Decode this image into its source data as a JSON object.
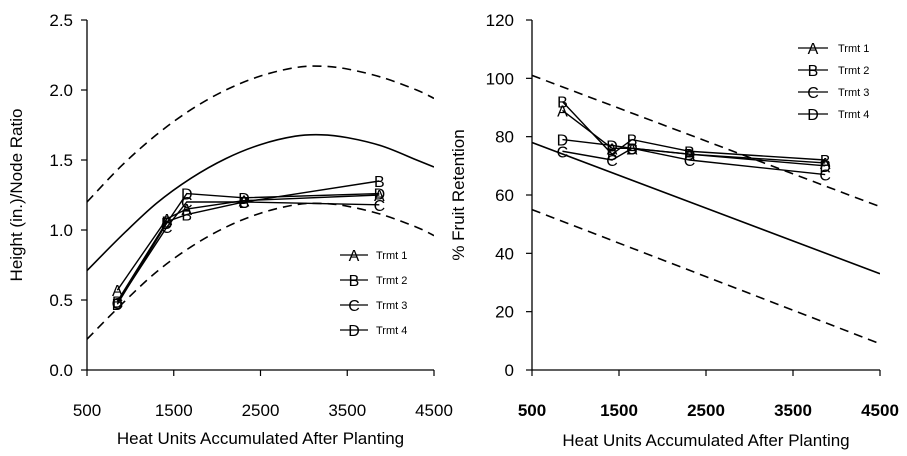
{
  "chart_data": [
    {
      "type": "line",
      "title": "",
      "xlabel": "Heat Units Accumulated After Planting",
      "ylabel": "Height (in.)/Node Ratio",
      "xlim": [
        500,
        4500
      ],
      "ylim": [
        0,
        2.5
      ],
      "xticks": [
        "500",
        "1500",
        "2500",
        "3500",
        "4500"
      ],
      "yticks": [
        "0.0",
        "0.5",
        "1.0",
        "1.5",
        "2.0",
        "2.5"
      ],
      "grid": false,
      "legend_position": "bottom-right",
      "series": [
        {
          "name": "Trmt 1",
          "marker": "A",
          "x": [
            850,
            1420,
            1650,
            2310,
            3870
          ],
          "y": [
            0.57,
            1.08,
            1.15,
            1.21,
            1.25
          ]
        },
        {
          "name": "Trmt 2",
          "marker": "B",
          "x": [
            850,
            1420,
            1650,
            2310,
            3870
          ],
          "y": [
            0.49,
            1.06,
            1.11,
            1.2,
            1.35
          ]
        },
        {
          "name": "Trmt 3",
          "marker": "C",
          "x": [
            850,
            1420,
            1650,
            2310,
            3870
          ],
          "y": [
            0.48,
            1.02,
            1.2,
            1.2,
            1.18
          ]
        },
        {
          "name": "Trmt 4",
          "marker": "D",
          "x": [
            850,
            1420,
            1650,
            2310,
            3870
          ],
          "y": [
            0.47,
            1.05,
            1.26,
            1.23,
            1.26
          ]
        }
      ],
      "reference_curves": [
        {
          "style": "solid",
          "x": [
            500,
            900,
            1300,
            1700,
            2100,
            2500,
            2900,
            3200,
            3500,
            3900,
            4300,
            4500
          ],
          "y": [
            0.71,
            0.96,
            1.19,
            1.37,
            1.51,
            1.61,
            1.67,
            1.68,
            1.66,
            1.6,
            1.5,
            1.45
          ]
        },
        {
          "style": "dashed",
          "x": [
            500,
            900,
            1300,
            1700,
            2100,
            2500,
            2900,
            3200,
            3500,
            3900,
            4300,
            4500
          ],
          "y": [
            1.2,
            1.46,
            1.68,
            1.86,
            2.0,
            2.1,
            2.16,
            2.17,
            2.15,
            2.09,
            2.0,
            1.94
          ]
        },
        {
          "style": "dashed",
          "x": [
            500,
            900,
            1300,
            1700,
            2100,
            2500,
            2900,
            3200,
            3500,
            3900,
            4300,
            4500
          ],
          "y": [
            0.22,
            0.47,
            0.7,
            0.88,
            1.02,
            1.12,
            1.18,
            1.19,
            1.17,
            1.11,
            1.02,
            0.96
          ]
        }
      ]
    },
    {
      "type": "line",
      "title": "",
      "xlabel": "Heat Units Accumulated After Planting",
      "ylabel": "% Fruit Retention",
      "xlim": [
        500,
        4500
      ],
      "ylim": [
        0,
        120
      ],
      "xticks": [
        "500",
        "1500",
        "2500",
        "3500",
        "4500"
      ],
      "yticks": [
        "0",
        "20",
        "40",
        "60",
        "80",
        "100",
        "120"
      ],
      "grid": false,
      "legend_position": "top-right",
      "series": [
        {
          "name": "Trmt 1",
          "marker": "A",
          "x": [
            850,
            1420,
            1650,
            2310,
            3870
          ],
          "y": [
            89,
            76,
            76,
            74,
            71
          ]
        },
        {
          "name": "Trmt 2",
          "marker": "B",
          "x": [
            850,
            1420,
            1650,
            2310,
            3870
          ],
          "y": [
            92,
            74,
            79,
            75,
            72
          ]
        },
        {
          "name": "Trmt 3",
          "marker": "C",
          "x": [
            850,
            1420,
            1650,
            2310,
            3870
          ],
          "y": [
            75,
            72,
            76,
            72,
            67
          ]
        },
        {
          "name": "Trmt 4",
          "marker": "D",
          "x": [
            850,
            1420,
            1650,
            2310,
            3870
          ],
          "y": [
            79,
            77,
            76,
            74,
            70
          ]
        }
      ],
      "reference_curves": [
        {
          "style": "solid",
          "x": [
            500,
            4500
          ],
          "y": [
            78,
            33
          ]
        },
        {
          "style": "dashed",
          "x": [
            500,
            4500
          ],
          "y": [
            101,
            56
          ]
        },
        {
          "style": "dashed",
          "x": [
            500,
            4500
          ],
          "y": [
            55,
            9
          ]
        }
      ]
    }
  ]
}
